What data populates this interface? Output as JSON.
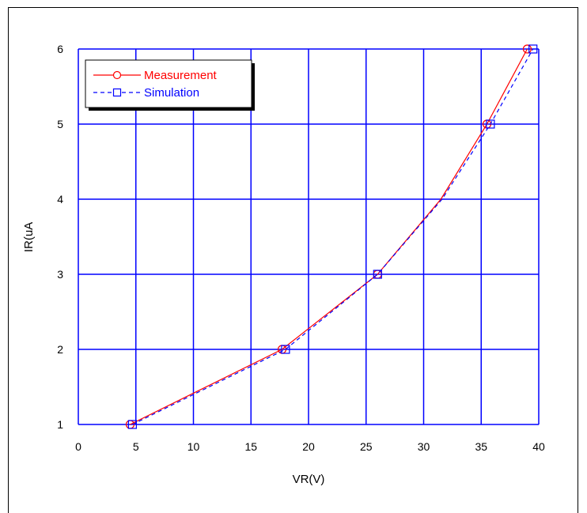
{
  "chart_data": {
    "type": "line",
    "xlabel": "VR(V)",
    "ylabel": "IR(uA",
    "xlim": [
      0,
      40
    ],
    "ylim": [
      1,
      6
    ],
    "x_ticks": [
      "0",
      "5",
      "10",
      "15",
      "20",
      "25",
      "30",
      "35",
      "40"
    ],
    "y_ticks": [
      "1",
      "2",
      "3",
      "4",
      "5",
      "6"
    ],
    "grid": true,
    "grid_color": "#0000ff",
    "legend_position": "top-left",
    "series": [
      {
        "name": "Measurement",
        "color": "#ff0000",
        "line_style": "solid",
        "marker": "circle",
        "points": [
          [
            4.5,
            1
          ],
          [
            17.7,
            2
          ],
          [
            26.0,
            3
          ],
          [
            31.5,
            4
          ],
          [
            35.5,
            5
          ],
          [
            39.0,
            6
          ]
        ],
        "marker_points": [
          [
            4.5,
            1
          ],
          [
            17.7,
            2
          ],
          [
            26.0,
            3
          ],
          [
            35.5,
            5
          ],
          [
            39.0,
            6
          ]
        ]
      },
      {
        "name": "Simulation",
        "color": "#0000ff",
        "line_style": "dashed",
        "marker": "square",
        "points": [
          [
            4.7,
            1
          ],
          [
            18.0,
            2
          ],
          [
            26.0,
            3
          ],
          [
            31.6,
            4
          ],
          [
            35.8,
            5
          ],
          [
            39.5,
            6
          ]
        ],
        "marker_points": [
          [
            4.7,
            1
          ],
          [
            18.0,
            2
          ],
          [
            26.0,
            3
          ],
          [
            35.8,
            5
          ],
          [
            39.5,
            6
          ]
        ]
      }
    ]
  }
}
